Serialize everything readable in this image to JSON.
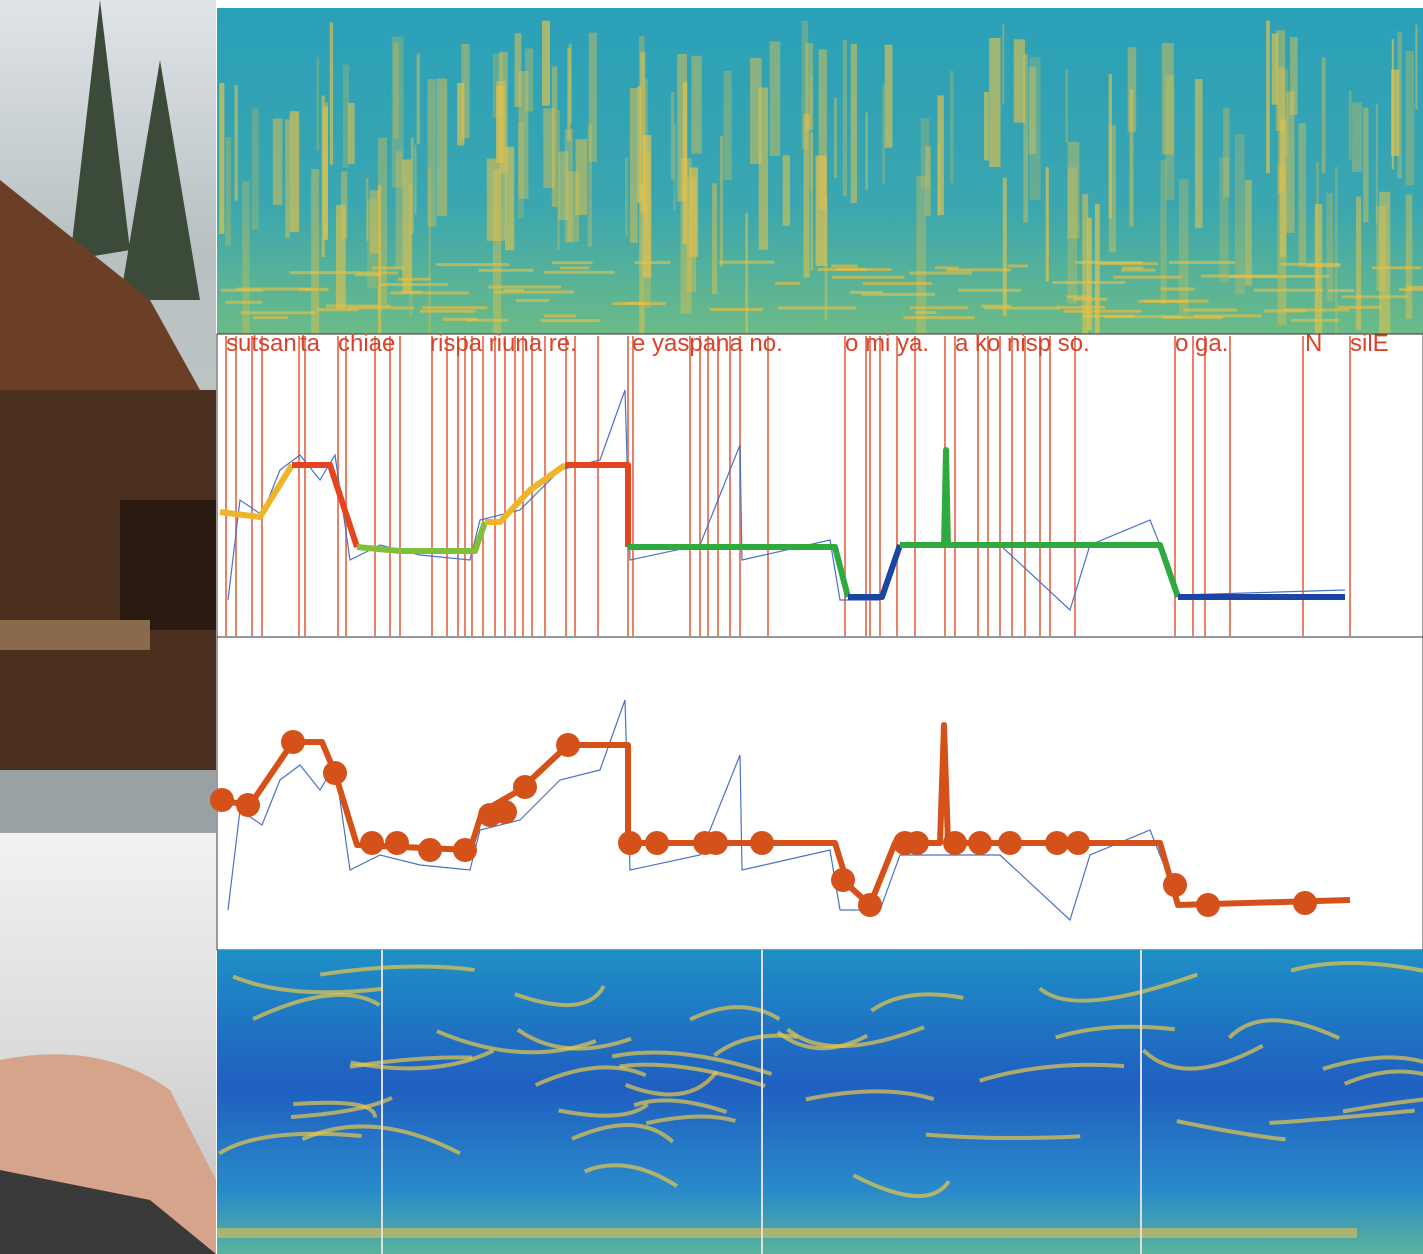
{
  "phoneme_labels": [
    "sutsan",
    "ta",
    "chiae",
    "rispa riuna re.",
    "e yaspana no.",
    "o mi ya.",
    "a ko nisp so.",
    "o ga.",
    "N",
    "silE"
  ]
}
